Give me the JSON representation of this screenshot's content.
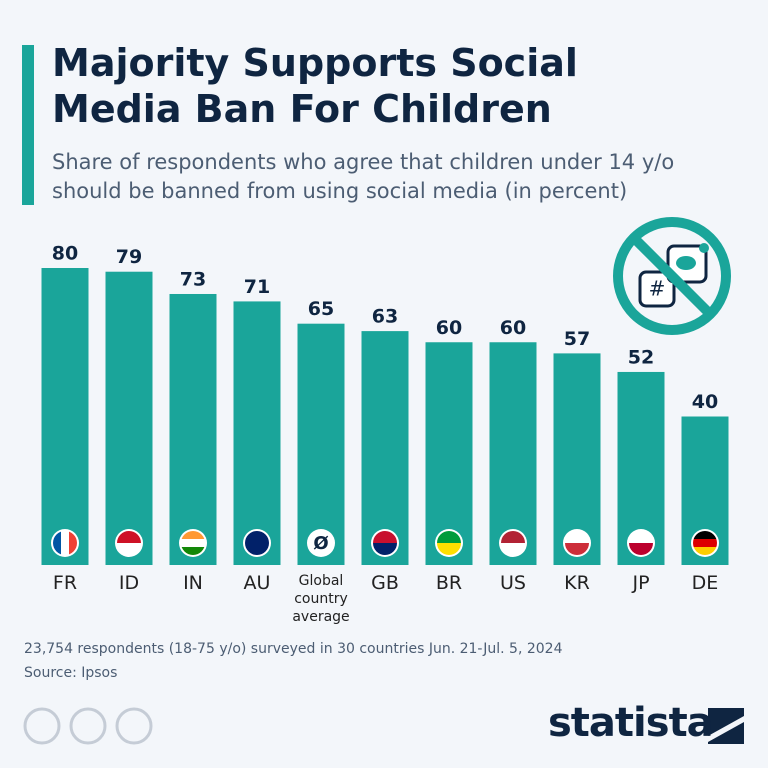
{
  "chart_data": {
    "type": "bar",
    "title": "Majority Supports Social Media Ban For Children",
    "subtitle": "Share of respondents who agree that children under 14 y/o should be banned from using social media (in percent)",
    "categories": [
      "FR",
      "ID",
      "IN",
      "AU",
      "Global country average",
      "GB",
      "BR",
      "US",
      "KR",
      "JP",
      "DE"
    ],
    "values": [
      80,
      79,
      73,
      71,
      65,
      63,
      60,
      60,
      57,
      52,
      40
    ],
    "color": "#1aa59a",
    "average_marker": "Ø",
    "note": "23,754 respondents (18-75 y/o) surveyed in 30 countries Jun. 21-Jul. 5, 2024",
    "source": "Source: Ipsos",
    "brand": "statista"
  }
}
